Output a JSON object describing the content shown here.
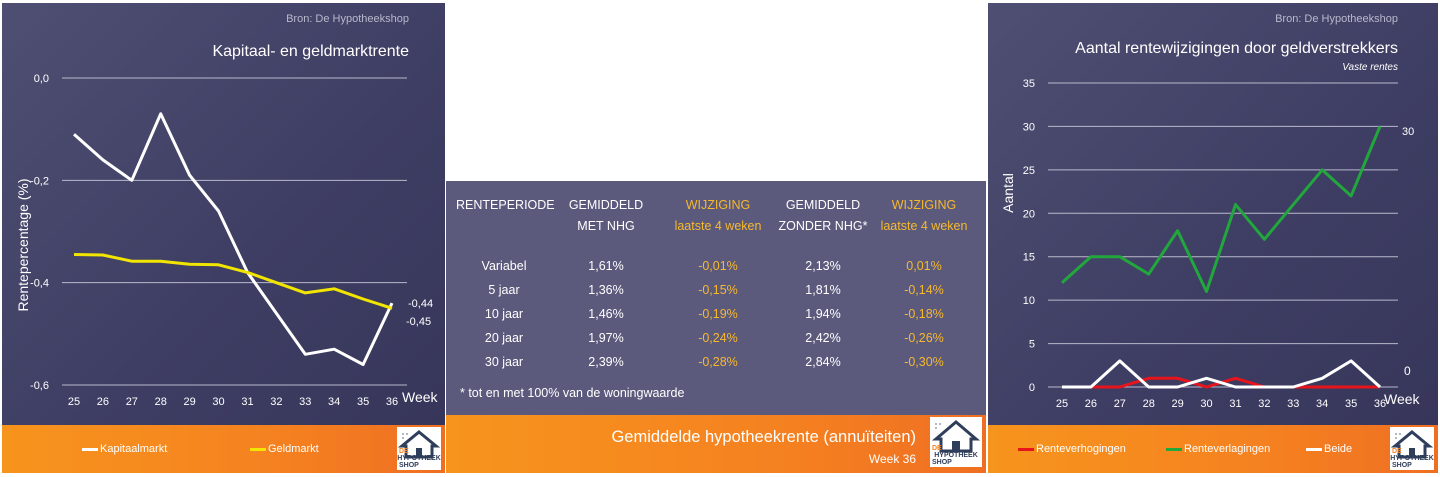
{
  "left_panel": {
    "source": "Bron: De Hypotheekshop",
    "legend": [
      {
        "label": "Kapitaalmarkt",
        "color": "#ffffff"
      },
      {
        "label": "Geldmarkt",
        "color": "#f2e600"
      }
    ],
    "end_labels": [
      "-0,44",
      "-0,45"
    ],
    "logo_text": [
      "DE",
      "HYPOTHEEK",
      "SHOP"
    ]
  },
  "middle_panel": {
    "headers": [
      [
        "RENTEPERIODE",
        ""
      ],
      [
        "GEMIDDELD",
        "MET NHG"
      ],
      [
        "WIJZIGING",
        "laatste 4 weken"
      ],
      [
        "GEMIDDELD",
        "ZONDER NHG*"
      ],
      [
        "WIJZIGING",
        "laatste 4 weken"
      ]
    ],
    "rows": [
      [
        "Variabel",
        "1,61%",
        "-0,01%",
        "2,13%",
        "0,01%"
      ],
      [
        "5 jaar",
        "1,36%",
        "-0,15%",
        "1,81%",
        "-0,14%"
      ],
      [
        "10 jaar",
        "1,46%",
        "-0,19%",
        "1,94%",
        "-0,18%"
      ],
      [
        "20 jaar",
        "1,97%",
        "-0,24%",
        "2,42%",
        "-0,26%"
      ],
      [
        "30 jaar",
        "2,39%",
        "-0,28%",
        "2,84%",
        "-0,30%"
      ]
    ],
    "footnote": "* tot en met 100% van de woningwaarde",
    "title": "Gemiddelde hypotheekrente (annuïteiten)",
    "week": "Week 36",
    "accent_color": "#f6b82d",
    "logo_text": [
      "DE",
      "HYPOTHEEK",
      "SHOP"
    ]
  },
  "right_panel": {
    "source": "Bron: De Hypotheekshop",
    "legend": [
      {
        "label": "Renteverhogingen",
        "color": "#e8141c"
      },
      {
        "label": "Renteverlagingen",
        "color": "#21a73c"
      },
      {
        "label": "Beide",
        "color": "#ffffff"
      }
    ],
    "end_labels": [
      "30",
      "0"
    ],
    "logo_text": [
      "DE",
      "HYPOTHEEK",
      "SHOP"
    ]
  },
  "chart_data": [
    {
      "type": "line",
      "title": "Kapitaal- en geldmarktrente",
      "xlabel": "Week",
      "ylabel": "Rentepercentage (%)",
      "x": [
        "25",
        "26",
        "27",
        "28",
        "29",
        "30",
        "31",
        "32",
        "33",
        "34",
        "35",
        "36"
      ],
      "yticks": [
        "0,0",
        "-0,2",
        "-0,4",
        "-0,6"
      ],
      "ylim": [
        -0.6,
        0.0
      ],
      "grid": true,
      "legend_position": "bottom",
      "series": [
        {
          "name": "Kapitaalmarkt",
          "color": "#ffffff",
          "values": [
            -0.11,
            -0.16,
            -0.2,
            -0.07,
            -0.19,
            -0.26,
            -0.38,
            -0.46,
            -0.54,
            -0.53,
            -0.56,
            -0.44
          ]
        },
        {
          "name": "Geldmarkt",
          "color": "#f2e600",
          "values": [
            -0.345,
            -0.346,
            -0.358,
            -0.358,
            -0.364,
            -0.365,
            -0.38,
            -0.4,
            -0.42,
            -0.412,
            -0.432,
            -0.45
          ]
        }
      ]
    },
    {
      "type": "line",
      "title": "Aantal rentewijzigingen door geldverstrekkers",
      "subtitle": "Vaste rentes",
      "xlabel": "Week",
      "ylabel": "Aantal",
      "x": [
        "25",
        "26",
        "27",
        "28",
        "29",
        "30",
        "31",
        "32",
        "33",
        "34",
        "35",
        "36"
      ],
      "yticks": [
        "0",
        "5",
        "10",
        "15",
        "20",
        "25",
        "30",
        "35"
      ],
      "ylim": [
        0,
        35
      ],
      "grid": true,
      "legend_position": "bottom",
      "series": [
        {
          "name": "Renteverhogingen",
          "color": "#e8141c",
          "values": [
            0,
            0,
            0,
            1,
            1,
            0,
            1,
            0,
            0,
            0,
            0,
            0
          ]
        },
        {
          "name": "Renteverlagingen",
          "color": "#21a73c",
          "values": [
            12,
            15,
            15,
            13,
            18,
            11,
            21,
            17,
            21,
            25,
            22,
            30
          ]
        },
        {
          "name": "Beide",
          "color": "#ffffff",
          "values": [
            0,
            0,
            3,
            0,
            0,
            1,
            0,
            0,
            0,
            1,
            3,
            0
          ]
        }
      ]
    }
  ]
}
